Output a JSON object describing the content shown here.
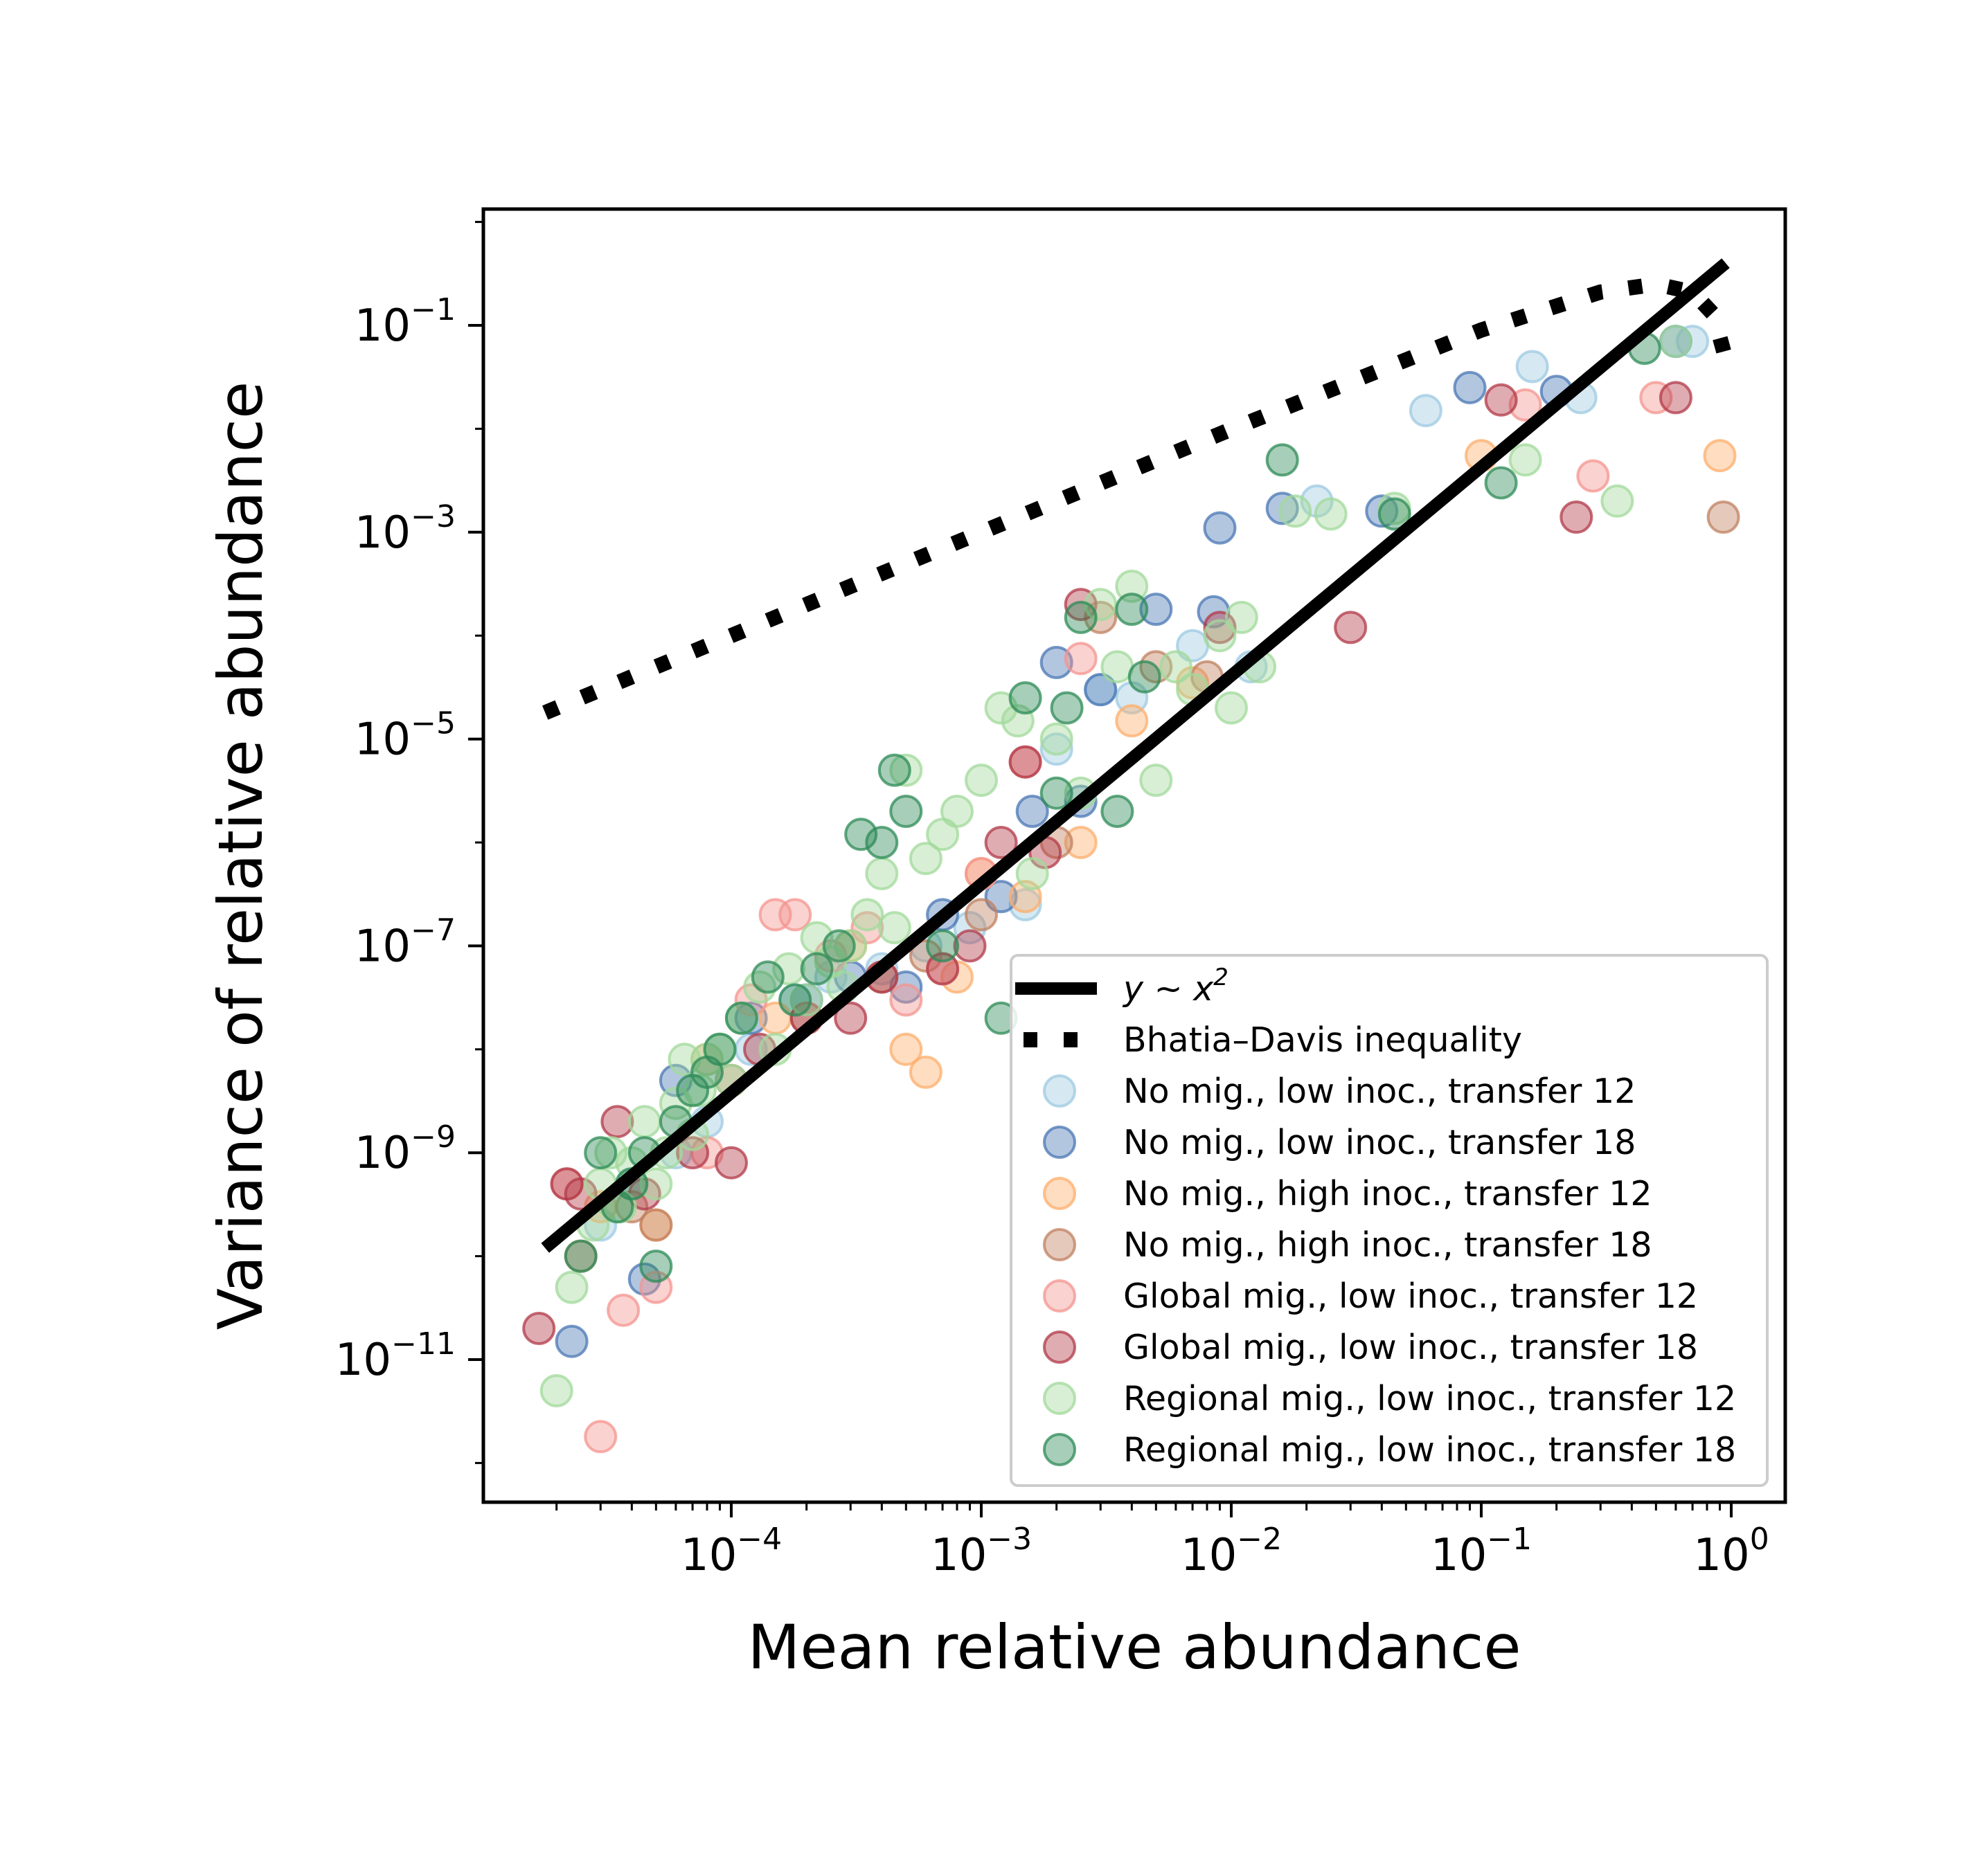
{
  "chart_data": {
    "type": "scatter",
    "title": "",
    "xlabel": "Mean relative abundance",
    "ylabel": "Variance of relative abundance",
    "xscale": "log",
    "yscale": "log",
    "xlim": [
      1e-05,
      1.6
    ],
    "ylim": [
      1e-12,
      1.6
    ],
    "xticks": [
      {
        "value": 0.0001,
        "label": "10",
        "exp": "−4"
      },
      {
        "value": 0.001,
        "label": "10",
        "exp": "−3"
      },
      {
        "value": 0.01,
        "label": "10",
        "exp": "−2"
      },
      {
        "value": 0.1,
        "label": "10",
        "exp": "−1"
      },
      {
        "value": 1,
        "label": "10",
        "exp": "0"
      }
    ],
    "yticks": [
      {
        "value": 1e-11,
        "label": "10",
        "exp": "−11"
      },
      {
        "value": 1e-09,
        "label": "10",
        "exp": "−9"
      },
      {
        "value": 1e-07,
        "label": "10",
        "exp": "−7"
      },
      {
        "value": 1e-05,
        "label": "10",
        "exp": "−5"
      },
      {
        "value": 0.001,
        "label": "10",
        "exp": "−3"
      },
      {
        "value": 0.1,
        "label": "10",
        "exp": "−1"
      }
    ],
    "grid": false,
    "legend_position": "lower-right",
    "lines": [
      {
        "name": "y ~ x^2",
        "legend_label": "y ~ x",
        "legend_sup": "2",
        "style": "solid",
        "color": "#000000",
        "x": [
          1.8e-05,
          0.95
        ],
        "y": [
          1.2e-10,
          0.4
        ]
      },
      {
        "name": "Bhatia–Davis inequality",
        "legend_label": "Bhatia–Davis inequality",
        "style": "dotted",
        "color": "#000000",
        "x": [
          1.8e-05,
          0.0001,
          0.001,
          0.01,
          0.1,
          0.3,
          0.5,
          0.7,
          0.85,
          0.95
        ],
        "y": [
          1.8e-05,
          0.0001,
          0.000999,
          0.0099,
          0.09,
          0.21,
          0.25,
          0.21,
          0.1275,
          0.0475
        ]
      }
    ],
    "series": [
      {
        "name": "No mig., low inoc., transfer 12",
        "color": "#9ecae1",
        "x": [
          3e-05,
          4e-05,
          6e-05,
          8e-05,
          0.00012,
          0.00018,
          0.00025,
          0.0004,
          0.0006,
          0.0009,
          0.0015,
          0.002,
          0.003,
          0.004,
          0.007,
          0.012,
          0.022,
          0.06,
          0.16,
          0.25,
          0.7
        ],
        "y": [
          2e-10,
          5e-10,
          1e-09,
          2e-09,
          1e-08,
          3e-08,
          5e-08,
          6e-08,
          1e-07,
          1.5e-07,
          2.5e-07,
          8e-06,
          3e-05,
          2.5e-05,
          8e-05,
          5e-05,
          0.002,
          0.015,
          0.04,
          0.02,
          0.07
        ]
      },
      {
        "name": "No mig., low inoc., transfer 18",
        "color": "#4a77b4",
        "x": [
          2.3e-05,
          4.5e-05,
          6e-05,
          0.00012,
          0.0002,
          0.0003,
          0.0005,
          0.0007,
          0.0012,
          0.0016,
          0.002,
          0.0025,
          0.003,
          0.005,
          0.0085,
          0.009,
          0.016,
          0.04,
          0.09,
          0.2,
          0.6
        ],
        "y": [
          1.5e-11,
          6e-11,
          5e-09,
          2e-08,
          3e-08,
          5e-08,
          4e-08,
          2e-07,
          3e-07,
          2e-06,
          5.5e-05,
          2.5e-06,
          3e-05,
          0.00018,
          0.00017,
          0.0011,
          0.0017,
          0.0016,
          0.025,
          0.023,
          0.07
        ]
      },
      {
        "name": "No mig., high inoc., transfer 12",
        "color": "#fdae6b",
        "x": [
          3e-05,
          5e-05,
          8e-05,
          0.00015,
          0.0003,
          0.0005,
          0.0006,
          0.0008,
          0.001,
          0.0015,
          0.0025,
          0.004,
          0.007,
          0.1,
          0.9
        ],
        "y": [
          3e-10,
          2e-10,
          8e-09,
          2e-08,
          1e-07,
          1e-08,
          6e-09,
          5e-08,
          5e-07,
          3e-07,
          1e-06,
          1.5e-05,
          3.5e-05,
          0.0055,
          0.0055
        ]
      },
      {
        "name": "No mig., high inoc., transfer 18",
        "color": "#c08060",
        "x": [
          2.5e-05,
          4e-05,
          5e-05,
          0.0001,
          0.0002,
          0.0004,
          0.0006,
          0.001,
          0.002,
          0.003,
          0.005,
          0.008,
          0.93
        ],
        "y": [
          1e-10,
          3e-10,
          2e-10,
          5e-09,
          2e-08,
          5e-08,
          8e-08,
          2e-07,
          1e-06,
          0.00015,
          5e-05,
          4e-05,
          0.0014
        ]
      },
      {
        "name": "Global mig., low inoc., transfer 12",
        "color": "#f4948f",
        "x": [
          2.2e-05,
          3e-05,
          3.7e-05,
          5e-05,
          8e-05,
          0.00012,
          0.00015,
          0.00018,
          0.00025,
          0.00035,
          0.0005,
          0.0007,
          0.001,
          0.0015,
          0.0025,
          0.15,
          0.28,
          0.5
        ],
        "y": [
          5e-10,
          1.8e-12,
          3e-11,
          5e-11,
          1e-09,
          3e-08,
          2e-07,
          2e-07,
          8e-08,
          1.5e-07,
          3e-08,
          6e-08,
          5e-07,
          6e-06,
          6e-05,
          0.017,
          0.0035,
          0.02
        ]
      },
      {
        "name": "Global mig., low inoc., transfer 18",
        "color": "#b23a48",
        "x": [
          1.7e-05,
          2.2e-05,
          2.5e-05,
          3.5e-05,
          4.5e-05,
          7e-05,
          0.0001,
          0.00013,
          0.0002,
          0.0003,
          0.0004,
          0.0007,
          0.0009,
          0.0012,
          0.0015,
          0.0018,
          0.0025,
          0.009,
          0.03,
          0.12,
          0.24,
          0.6
        ],
        "y": [
          2e-11,
          5e-10,
          4e-10,
          2e-09,
          4e-10,
          1e-09,
          8e-10,
          1e-08,
          2e-08,
          2e-08,
          5e-08,
          6e-08,
          1e-07,
          1e-06,
          6e-06,
          8e-07,
          0.0002,
          0.00012,
          0.00012,
          0.019,
          0.0014,
          0.02
        ]
      },
      {
        "name": "Regional mig., low inoc., transfer 12",
        "color": "#a1d99b",
        "x": [
          2e-05,
          2.3e-05,
          2.8e-05,
          3e-05,
          3.3e-05,
          3.6e-05,
          4e-05,
          4.5e-05,
          5e-05,
          5.5e-05,
          6e-05,
          6.5e-05,
          7e-05,
          7.5e-05,
          8e-05,
          9e-05,
          0.0001,
          0.00011,
          0.00013,
          0.00015,
          0.00017,
          0.0002,
          0.00022,
          0.00025,
          0.00028,
          0.0003,
          0.00035,
          0.0004,
          0.00045,
          0.0005,
          0.0006,
          0.0007,
          0.0008,
          0.001,
          0.0012,
          0.0014,
          0.0016,
          0.002,
          0.0025,
          0.003,
          0.0035,
          0.004,
          0.005,
          0.006,
          0.007,
          0.009,
          0.01,
          0.011,
          0.013,
          0.018,
          0.025,
          0.045,
          0.15,
          0.35,
          0.6
        ],
        "y": [
          5e-12,
          5e-11,
          2e-10,
          5e-10,
          1e-09,
          3e-10,
          8e-10,
          2e-09,
          5e-10,
          1e-09,
          3e-09,
          8e-09,
          1.5e-09,
          4e-09,
          8e-09,
          1e-08,
          5e-09,
          2e-08,
          4e-08,
          1e-08,
          6e-08,
          3e-08,
          1.2e-07,
          7e-08,
          4e-08,
          1e-07,
          2e-07,
          5e-07,
          1.5e-07,
          5e-06,
          7e-07,
          1.2e-06,
          2e-06,
          4e-06,
          2e-05,
          1.5e-05,
          5e-07,
          1e-05,
          3e-06,
          0.0002,
          5e-05,
          0.0003,
          4e-06,
          5e-05,
          3e-05,
          0.0001,
          2e-05,
          0.00015,
          5e-05,
          0.0016,
          0.0015,
          0.0017,
          0.005,
          0.002,
          0.07
        ]
      },
      {
        "name": "Regional mig., low inoc., transfer 18",
        "color": "#2e8b57",
        "x": [
          2.5e-05,
          3e-05,
          3.5e-05,
          4e-05,
          4.5e-05,
          5e-05,
          6e-05,
          7e-05,
          8e-05,
          9e-05,
          0.00011,
          0.00014,
          0.00018,
          0.00022,
          0.00027,
          0.00033,
          0.0004,
          0.00045,
          0.0005,
          0.0007,
          0.0012,
          0.0015,
          0.002,
          0.0022,
          0.0025,
          0.0035,
          0.004,
          0.0045,
          0.016,
          0.045,
          0.12,
          0.45
        ],
        "y": [
          1e-10,
          1e-09,
          3e-10,
          5e-10,
          1e-09,
          8e-11,
          2e-09,
          4e-09,
          6e-09,
          1e-08,
          2e-08,
          5e-08,
          3e-08,
          6e-08,
          1e-07,
          1.2e-06,
          1e-06,
          5e-06,
          2e-06,
          1e-07,
          2e-08,
          2.5e-05,
          3e-06,
          2e-05,
          0.00015,
          2e-06,
          0.00018,
          4e-05,
          0.005,
          0.0015,
          0.003,
          0.06
        ]
      }
    ]
  }
}
